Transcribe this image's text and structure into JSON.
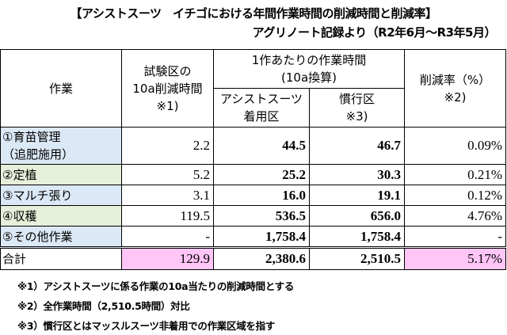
{
  "title_line1": "【アシストスーツ　イチゴにおける年間作業時間の削減時間と削減率】",
  "title_line2": "アグリノート記録より（R2年6月～R3年5月）",
  "headers": {
    "work": "作業",
    "reduction_line1": "試験区の",
    "reduction_line2": "10a削減時間",
    "reduction_line3": "※1)",
    "per_work_line1": "1作あたりの作業時間",
    "per_work_line2": "(10a換算)",
    "assist_line1": "アシストスーツ",
    "assist_line2": "着用区",
    "conventional_line1": "慣行区",
    "conventional_line2": "※3)",
    "rate_line1": "削減率（%）",
    "rate_line2": "※2)"
  },
  "rows": [
    {
      "name_line1": "①育苗管理",
      "name_line2": "（追肥施用）",
      "reduction": "2.2",
      "assist": "44.5",
      "conventional": "46.7",
      "rate": "0.09%"
    },
    {
      "name_line1": "②定植",
      "name_line2": "",
      "reduction": "5.2",
      "assist": "25.2",
      "conventional": "30.3",
      "rate": "0.21%"
    },
    {
      "name_line1": "③マルチ張り",
      "name_line2": "",
      "reduction": "3.1",
      "assist": "16.0",
      "conventional": "19.1",
      "rate": "0.12%"
    },
    {
      "name_line1": "④収穫",
      "name_line2": "",
      "reduction": "119.5",
      "assist": "536.5",
      "conventional": "656.0",
      "rate": "4.76%"
    },
    {
      "name_line1": "⑤その他作業",
      "name_line2": "",
      "reduction": "-",
      "assist": "1,758.4",
      "conventional": "1,758.4",
      "rate": "-"
    }
  ],
  "total": {
    "name": "合計",
    "reduction": "129.9",
    "assist": "2,380.6",
    "conventional": "2,510.5",
    "rate": "5.17%"
  },
  "notes": [
    "※1）アシストスーツに係る作業の10a当たりの削減時間とする",
    "※2）全作業時間（2,510.5時間）対比",
    "※3）慣行区とはマッスルスーツ非着用での作業区域を指す"
  ],
  "colors": {
    "blue": "#dbe8f5",
    "green": "#e6efd9",
    "pink": "#ffc5f6"
  }
}
